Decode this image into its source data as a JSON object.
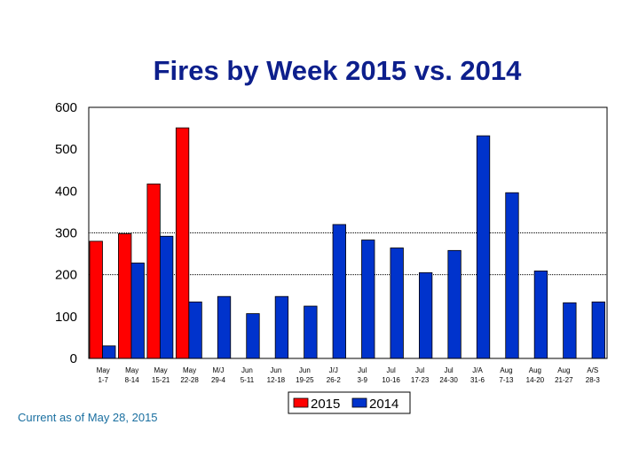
{
  "chart_data": {
    "type": "bar",
    "title": "Fires by Week 2015 vs. 2014",
    "categories": [
      [
        "May",
        "1-7"
      ],
      [
        "May",
        "8-14"
      ],
      [
        "May",
        "15-21"
      ],
      [
        "May",
        "22-28"
      ],
      [
        "M/J",
        "29-4"
      ],
      [
        "Jun",
        "5-11"
      ],
      [
        "Jun",
        "12-18"
      ],
      [
        "Jun",
        "19-25"
      ],
      [
        "J/J",
        "26-2"
      ],
      [
        "Jul",
        "3-9"
      ],
      [
        "Jul",
        "10-16"
      ],
      [
        "Jul",
        "17-23"
      ],
      [
        "Jul",
        "24-30"
      ],
      [
        "J/A",
        "31-6"
      ],
      [
        "Aug",
        "7-13"
      ],
      [
        "Aug",
        "14-20"
      ],
      [
        "Aug",
        "21-27"
      ],
      [
        "A/S",
        "28-3"
      ]
    ],
    "series": [
      {
        "name": "2015",
        "color": "#ff0000",
        "values": [
          280,
          298,
          417,
          551,
          null,
          null,
          null,
          null,
          null,
          null,
          null,
          null,
          null,
          null,
          null,
          null,
          null,
          null
        ]
      },
      {
        "name": "2014",
        "color": "#0033cc",
        "values": [
          30,
          228,
          292,
          135,
          148,
          107,
          148,
          125,
          320,
          283,
          264,
          205,
          258,
          532,
          396,
          209,
          133,
          135
        ]
      }
    ],
    "ylim": [
      0,
      600
    ],
    "yticks": [
      0,
      100,
      200,
      300,
      400,
      500,
      600
    ],
    "gridlines": [
      200,
      300
    ],
    "legend_position": "bottom"
  },
  "footnote": "Current as of May 28, 2015"
}
